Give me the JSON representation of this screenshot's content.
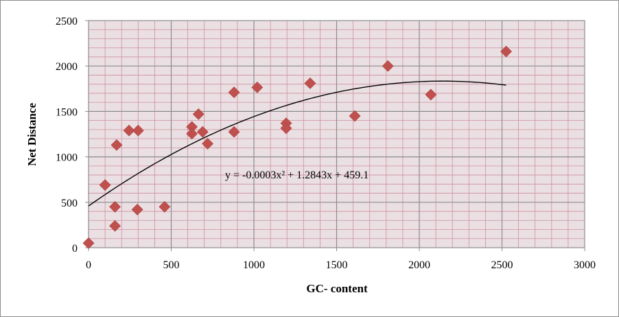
{
  "chart_data": {
    "type": "scatter",
    "xlabel": "GC- content",
    "ylabel": "Net Distance",
    "xlim": [
      0,
      3000
    ],
    "ylim": [
      0,
      2500
    ],
    "x_ticks": [
      0,
      500,
      1000,
      1500,
      2000,
      2500,
      3000
    ],
    "y_ticks": [
      0,
      500,
      1000,
      1500,
      2000,
      2500
    ],
    "grid": true,
    "plot_background": "#eadfe2",
    "major_grid_color": "#8c8c8c",
    "minor_grid_color": "#cf8f9f",
    "marker_color": "#c0504d",
    "marker_shape": "diamond",
    "trendline_color": "#000000",
    "points": [
      {
        "x": 0,
        "y": 50
      },
      {
        "x": 100,
        "y": 690
      },
      {
        "x": 160,
        "y": 450
      },
      {
        "x": 160,
        "y": 240
      },
      {
        "x": 170,
        "y": 1130
      },
      {
        "x": 245,
        "y": 1290
      },
      {
        "x": 300,
        "y": 1290
      },
      {
        "x": 295,
        "y": 420
      },
      {
        "x": 460,
        "y": 450
      },
      {
        "x": 625,
        "y": 1330
      },
      {
        "x": 625,
        "y": 1255
      },
      {
        "x": 665,
        "y": 1470
      },
      {
        "x": 690,
        "y": 1275
      },
      {
        "x": 720,
        "y": 1145
      },
      {
        "x": 880,
        "y": 1710
      },
      {
        "x": 880,
        "y": 1275
      },
      {
        "x": 1020,
        "y": 1765
      },
      {
        "x": 1195,
        "y": 1370
      },
      {
        "x": 1195,
        "y": 1315
      },
      {
        "x": 1340,
        "y": 1810
      },
      {
        "x": 1610,
        "y": 1450
      },
      {
        "x": 1810,
        "y": 2000
      },
      {
        "x": 2070,
        "y": 1685
      },
      {
        "x": 2525,
        "y": 2160
      }
    ],
    "trendline": {
      "type": "polynomial",
      "coefficients": [
        -0.0003,
        1.2843,
        459.1
      ],
      "x_range": [
        0,
        2525
      ],
      "label": "y = -0.0003x² + 1.2843x + 459.1"
    }
  }
}
